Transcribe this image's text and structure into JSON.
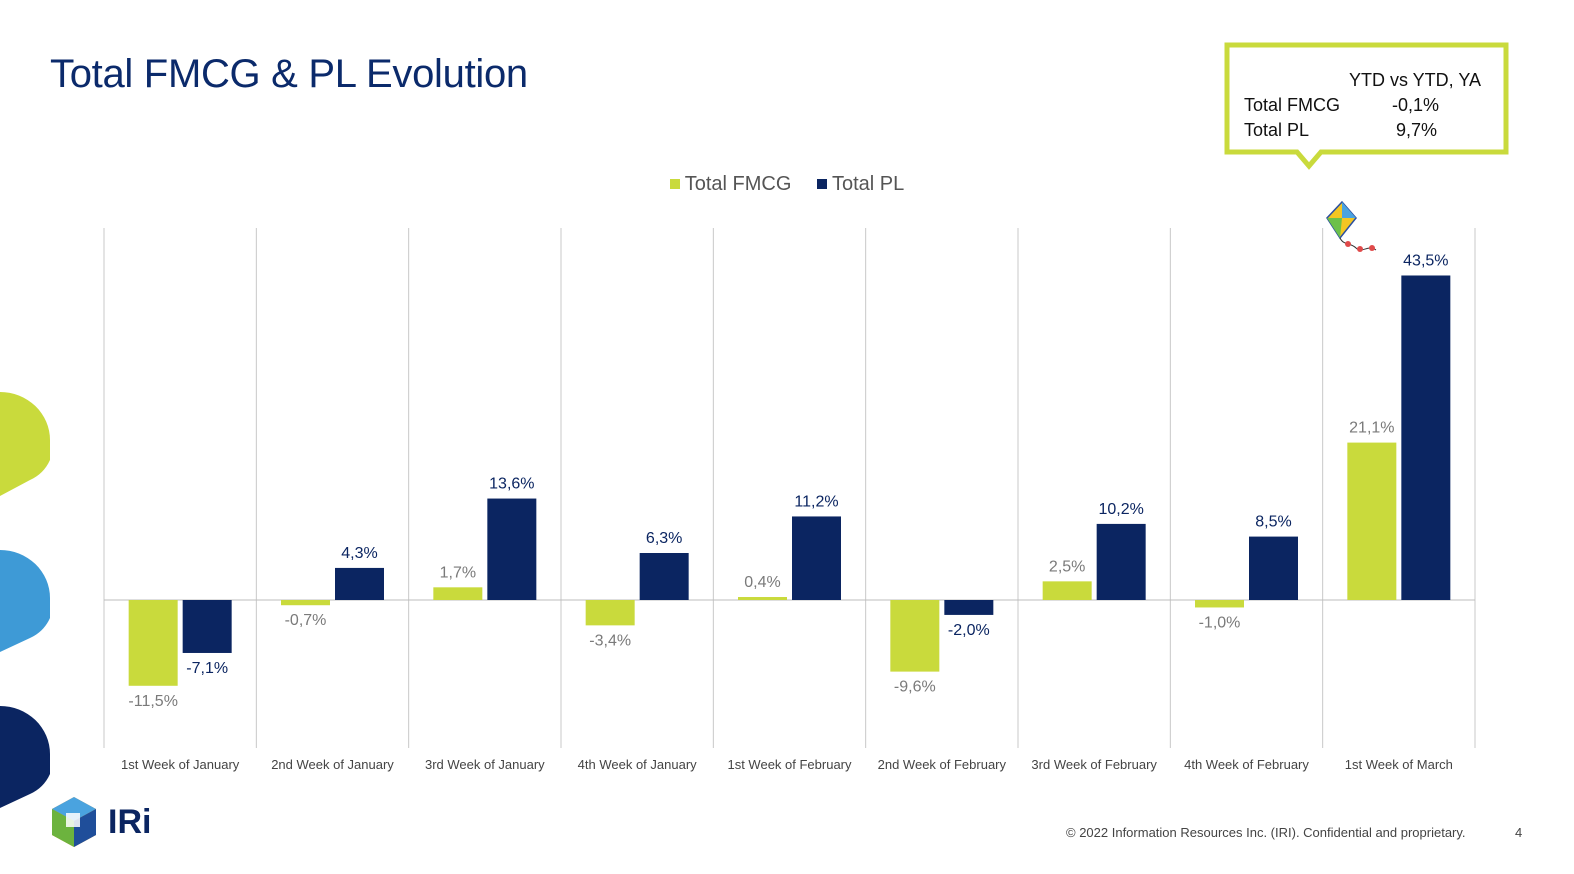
{
  "page": {
    "title": "Total FMCG & PL Evolution",
    "footer": "© 2022 Information Resources Inc. (IRI). Confidential and proprietary.",
    "page_number": "4",
    "logo_text": "IRi"
  },
  "callout": {
    "header": "YTD vs YTD, YA",
    "rows": [
      {
        "label": "Total FMCG",
        "value": "-0,1%"
      },
      {
        "label": "Total PL",
        "value": "9,7%"
      }
    ],
    "border_color": "#c9da3c"
  },
  "colors": {
    "fmcg": "#c9da3c",
    "pl": "#0b2561",
    "title": "#0b2a6b",
    "deco_green": "#c9da3c",
    "deco_blue": "#3e9ad6",
    "deco_navy": "#0b2561"
  },
  "chart_data": {
    "type": "bar",
    "title": "",
    "xlabel": "",
    "ylabel": "",
    "grid": "vertical category separators",
    "legend": "top-center",
    "categories": [
      "1st Week of January",
      "2nd Week of January",
      "3rd Week of January",
      "4th Week of January",
      "1st Week of February",
      "2nd Week of February",
      "3rd Week of February",
      "4th Week of February",
      "1st Week of March"
    ],
    "series": [
      {
        "name": "Total FMCG",
        "values": [
          -11.5,
          -0.7,
          1.7,
          -3.4,
          0.4,
          -9.6,
          2.5,
          -1.0,
          21.1
        ],
        "labels": [
          "-11,5%",
          "-0,7%",
          "1,7%",
          "-3,4%",
          "0,4%",
          "-9,6%",
          "2,5%",
          "-1,0%",
          "21,1%"
        ]
      },
      {
        "name": "Total PL",
        "values": [
          -7.1,
          4.3,
          13.6,
          6.3,
          11.2,
          -2.0,
          10.2,
          8.5,
          43.5
        ],
        "labels": [
          "-7,1%",
          "4,3%",
          "13,6%",
          "6,3%",
          "11,2%",
          "-2,0%",
          "10,2%",
          "8,5%",
          "43,5%"
        ]
      }
    ],
    "ylim": [
      -20,
      50
    ]
  }
}
